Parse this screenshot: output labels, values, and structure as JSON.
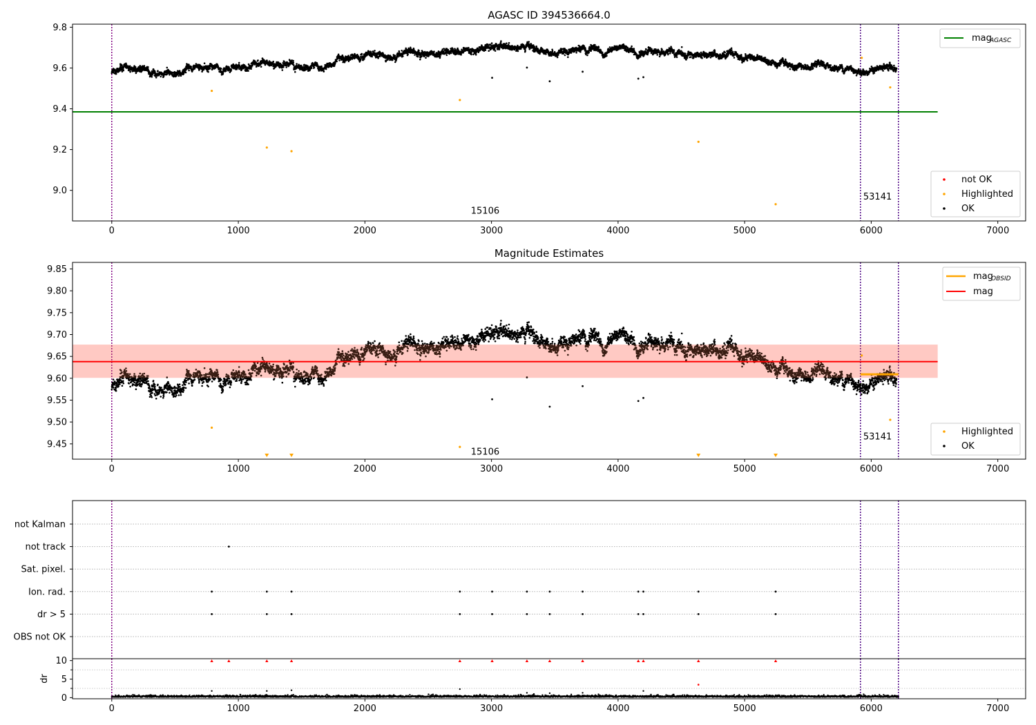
{
  "chart_data": [
    {
      "type": "scatter",
      "title": "AGASC ID 394536664.0",
      "xlim": [
        -310,
        7220
      ],
      "ylim": [
        8.85,
        9.815
      ],
      "xticks": [
        0,
        1000,
        2000,
        3000,
        4000,
        5000,
        6000,
        7000
      ],
      "xtick_labels": [
        "0",
        "1000",
        "2000",
        "3000",
        "4000",
        "5000",
        "6000",
        "7000"
      ],
      "yticks": [
        9.0,
        9.2,
        9.4,
        9.6,
        9.8
      ],
      "ytick_labels": [
        "9.0",
        "9.2",
        "9.4",
        "9.6",
        "9.8"
      ],
      "hlines": [
        {
          "name": "mag",
          "subscript": "AGASC",
          "y": 9.385,
          "x_range": [
            -310,
            6525
          ],
          "color": "#008000"
        }
      ],
      "vlines": [
        {
          "x": 0,
          "color": "#800080"
        },
        {
          "x": 5915,
          "color": "#4b0082"
        },
        {
          "x": 6215,
          "color": "#4b0082"
        }
      ],
      "obsid_labels": [
        {
          "text": "15106",
          "x": 2950,
          "y": 8.885
        },
        {
          "text": "53141",
          "x": 6050,
          "y": 8.955
        }
      ],
      "ok_profile": {
        "x": [
          0,
          200,
          500,
          700,
          900,
          1100,
          1300,
          1500,
          1700,
          2000,
          2300,
          2500,
          2750,
          3000,
          3200,
          3500,
          3700,
          3900,
          4200,
          4500,
          4800,
          5000,
          5200,
          5500,
          5800,
          5950,
          6200
        ],
        "y": [
          9.575,
          9.6,
          9.57,
          9.6,
          9.59,
          9.62,
          9.625,
          9.6,
          9.63,
          9.65,
          9.665,
          9.675,
          9.69,
          9.7,
          9.705,
          9.68,
          9.7,
          9.675,
          9.685,
          9.665,
          9.655,
          9.66,
          9.64,
          9.6,
          9.6,
          9.59,
          9.6
        ]
      },
      "ok_outliers": {
        "x": [
          3005,
          3280,
          3460,
          3720,
          4160,
          4200
        ],
        "y": [
          9.552,
          9.602,
          9.535,
          9.582,
          9.548,
          9.555
        ]
      },
      "highlighted": {
        "x": [
          790,
          1225,
          1420,
          2750,
          4635,
          5245,
          5925,
          6150
        ],
        "y": [
          9.488,
          9.21,
          9.192,
          9.443,
          9.238,
          8.932,
          9.65,
          9.505
        ]
      },
      "legend_lines": [
        {
          "label": "mag",
          "subscript": "AGASC",
          "color": "#008000"
        }
      ],
      "legend_markers": [
        {
          "label": "not OK",
          "color": "#ff0000"
        },
        {
          "label": "Highlighted",
          "color": "#ffa500"
        },
        {
          "label": "OK",
          "color": "#000000"
        }
      ]
    },
    {
      "type": "scatter",
      "title": "Magnitude Estimates",
      "xlim": [
        -310,
        7220
      ],
      "ylim": [
        9.415,
        9.865
      ],
      "xticks": [
        0,
        1000,
        2000,
        3000,
        4000,
        5000,
        6000,
        7000
      ],
      "xtick_labels": [
        "0",
        "1000",
        "2000",
        "3000",
        "4000",
        "5000",
        "6000",
        "7000"
      ],
      "yticks": [
        9.45,
        9.5,
        9.55,
        9.6,
        9.65,
        9.7,
        9.75,
        9.8,
        9.85
      ],
      "ytick_labels": [
        "9.45",
        "9.50",
        "9.55",
        "9.60",
        "9.65",
        "9.70",
        "9.75",
        "9.80",
        "9.85"
      ],
      "band": {
        "y0": 9.601,
        "y1": 9.677,
        "x_range": [
          -310,
          6525
        ],
        "color": "#ffb6c1"
      },
      "hlines": [
        {
          "name": "mag",
          "y": 9.638,
          "x_range": [
            -310,
            6525
          ],
          "color": "#ff0000"
        },
        {
          "name": "mag",
          "subscript": "OBSID",
          "y": 9.609,
          "x_range": [
            5915,
            6215
          ],
          "color": "#ffa500"
        }
      ],
      "vlines": [
        {
          "x": 0,
          "color": "#800080"
        },
        {
          "x": 5915,
          "color": "#4b0082"
        },
        {
          "x": 6215,
          "color": "#4b0082"
        }
      ],
      "obsid_labels": [
        {
          "text": "15106",
          "x": 2950,
          "y": 9.425
        },
        {
          "text": "53141",
          "x": 6050,
          "y": 9.46
        }
      ],
      "ok_profile": {
        "x": [
          0,
          200,
          500,
          700,
          900,
          1100,
          1300,
          1500,
          1700,
          2000,
          2300,
          2500,
          2750,
          3000,
          3200,
          3500,
          3700,
          3900,
          4200,
          4500,
          4800,
          5000,
          5200,
          5500,
          5800,
          5950,
          6200
        ],
        "y": [
          9.575,
          9.6,
          9.57,
          9.6,
          9.59,
          9.62,
          9.625,
          9.6,
          9.63,
          9.65,
          9.665,
          9.675,
          9.69,
          9.7,
          9.705,
          9.68,
          9.7,
          9.675,
          9.685,
          9.665,
          9.655,
          9.66,
          9.64,
          9.6,
          9.6,
          9.59,
          9.6
        ]
      },
      "ok_outliers": {
        "x": [
          3005,
          3280,
          3460,
          3720,
          4160,
          4200
        ],
        "y": [
          9.552,
          9.602,
          9.535,
          9.582,
          9.548,
          9.555
        ]
      },
      "highlighted": {
        "x": [
          790,
          2750,
          5925,
          6150
        ],
        "y": [
          9.487,
          9.443,
          9.652,
          9.505
        ]
      },
      "below_range_markers": {
        "x": [
          1225,
          1420,
          4635,
          5245
        ]
      },
      "legend_lines": [
        {
          "label": "mag",
          "subscript": "OBSID",
          "color": "#ffa500"
        },
        {
          "label": "mag",
          "color": "#ff0000"
        }
      ],
      "legend_markers": [
        {
          "label": "Highlighted",
          "color": "#ffa500"
        },
        {
          "label": "OK",
          "color": "#000000"
        }
      ]
    },
    {
      "type": "scatter",
      "xlim": [
        -310,
        7220
      ],
      "categories": [
        "OBS not OK",
        "dr > 5",
        "Ion. rad.",
        "Sat. pixel.",
        "not track",
        "not Kalman"
      ],
      "flags": [
        {
          "category": "not track",
          "x": [
            925
          ]
        },
        {
          "category": "Ion. rad.",
          "x": [
            790,
            1225,
            1420,
            2750,
            3005,
            3280,
            3460,
            3720,
            4160,
            4200,
            4635,
            5245
          ]
        },
        {
          "category": "dr > 5",
          "x": [
            790,
            1225,
            1420,
            2750,
            3005,
            3280,
            3460,
            3720,
            4160,
            4200,
            4635,
            5245
          ]
        }
      ],
      "vlines": [
        {
          "x": 0,
          "color": "#800080"
        },
        {
          "x": 5915,
          "color": "#4b0082"
        },
        {
          "x": 6215,
          "color": "#4b0082"
        }
      ]
    },
    {
      "type": "scatter",
      "ylabel": "dr",
      "xlim": [
        -310,
        7220
      ],
      "ylim": [
        -0.3,
        10.5
      ],
      "xticks": [
        0,
        1000,
        2000,
        3000,
        4000,
        5000,
        6000,
        7000
      ],
      "xtick_labels": [
        "0",
        "1000",
        "2000",
        "3000",
        "4000",
        "5000",
        "6000",
        "7000"
      ],
      "yticks": [
        0,
        5,
        10
      ],
      "ytick_labels": [
        "0",
        "5",
        "10"
      ],
      "clipped_markers": {
        "x": [
          790,
          925,
          1225,
          1420,
          2750,
          3005,
          3280,
          3460,
          3720,
          4160,
          4200,
          4635,
          5245
        ],
        "y": 9.9
      },
      "highlighted_points": {
        "x": [
          4635
        ],
        "y": [
          3.5
        ]
      },
      "ok_points": {
        "x": [
          790,
          1225,
          1420,
          2750,
          3280,
          3460,
          3720,
          4200
        ],
        "y": [
          1.8,
          1.8,
          2.0,
          2.3,
          1.3,
          1.2,
          1.3,
          1.8
        ]
      },
      "vlines": [
        {
          "x": 0,
          "color": "#800080"
        },
        {
          "x": 5915,
          "color": "#4b0082"
        },
        {
          "x": 6215,
          "color": "#4b0082"
        }
      ]
    }
  ]
}
